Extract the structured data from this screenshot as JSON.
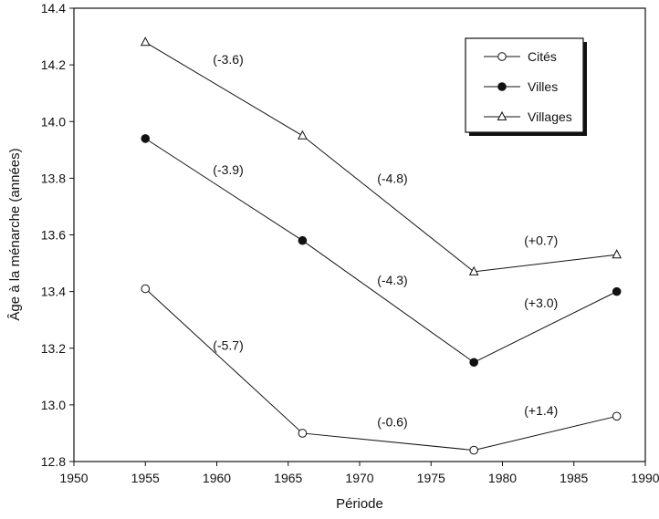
{
  "chart_data": {
    "type": "line",
    "title": "",
    "xlabel": "Période",
    "ylabel": "Âge à  la  ménarche (années)",
    "xlim": [
      1950,
      1990
    ],
    "ylim": [
      12.8,
      14.4
    ],
    "xticks": [
      "1950",
      "1955",
      "1960",
      "1965",
      "1970",
      "1975",
      "1980",
      "1985",
      "1990"
    ],
    "yticks": [
      "12.8",
      "13.0",
      "13.2",
      "13.4",
      "13.6",
      "13.8",
      "14.0",
      "14.2",
      "14.4"
    ],
    "grid": false,
    "legend_position": "top-right",
    "x": [
      1955,
      1966,
      1978,
      1988
    ],
    "series": [
      {
        "name": "Cités",
        "marker": "open-circle",
        "values": [
          13.41,
          12.9,
          12.84,
          12.96
        ]
      },
      {
        "name": "Villes",
        "marker": "filled-circle",
        "values": [
          13.94,
          13.58,
          13.15,
          13.4
        ]
      },
      {
        "name": "Villages",
        "marker": "open-triangle",
        "values": [
          14.28,
          13.95,
          13.47,
          13.53
        ]
      }
    ],
    "annotations": [
      {
        "text": "(-3.6)",
        "x": 1960.8,
        "y": 14.22
      },
      {
        "text": "(-3.9)",
        "x": 1960.8,
        "y": 13.83
      },
      {
        "text": "(-4.8)",
        "x": 1972.3,
        "y": 13.8
      },
      {
        "text": "(-4.3)",
        "x": 1972.3,
        "y": 13.44
      },
      {
        "text": "(+0.7)",
        "x": 1982.7,
        "y": 13.58
      },
      {
        "text": "(+3.0)",
        "x": 1982.7,
        "y": 13.36
      },
      {
        "text": "(-5.7)",
        "x": 1960.8,
        "y": 13.21
      },
      {
        "text": "(-0.6)",
        "x": 1972.3,
        "y": 12.94
      },
      {
        "text": "(+1.4)",
        "x": 1982.7,
        "y": 12.98
      }
    ]
  }
}
